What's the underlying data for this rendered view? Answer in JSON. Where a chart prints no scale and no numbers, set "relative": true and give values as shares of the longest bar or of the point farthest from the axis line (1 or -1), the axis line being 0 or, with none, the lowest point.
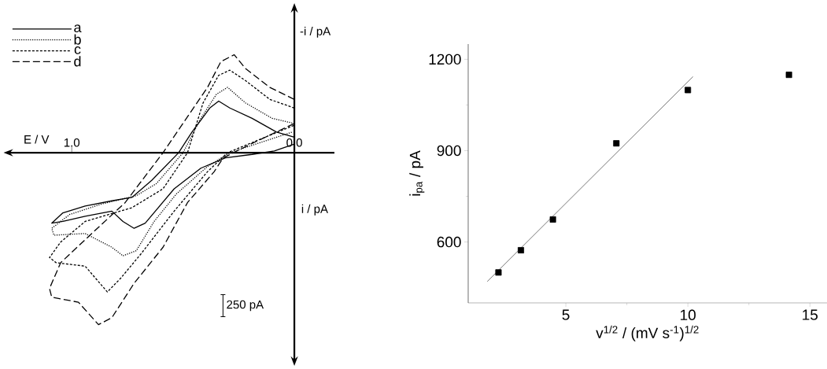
{
  "chart_data": [
    {
      "type": "line",
      "relative": true,
      "xlabel": "E / V",
      "ylabel": "-i / pA",
      "xlim": [
        1.28,
        -0.18
      ],
      "xticks": [
        {
          "value": 1.0,
          "label": "1.0"
        },
        {
          "value": 0.0,
          "label": "0.0"
        }
      ],
      "legend": "top left",
      "annotations": [
        "i / pA",
        "250 pA"
      ],
      "series": [
        {
          "name": "a",
          "color": "#000000",
          "line_style": "solid",
          "x": [
            0.0,
            0.08,
            0.19,
            0.29,
            0.34,
            0.38,
            0.46,
            0.52,
            0.64,
            0.73,
            0.82,
            0.94,
            1.04,
            1.09,
            1.04,
            0.94,
            0.82,
            0.77,
            0.72,
            0.67,
            0.54,
            0.42,
            0.31,
            0.19,
            0.09,
            0.0
          ],
          "values": [
            0.09,
            0.12,
            0.2,
            0.26,
            0.3,
            0.26,
            0.12,
            0.0,
            -0.16,
            -0.26,
            -0.28,
            -0.31,
            -0.35,
            -0.41,
            -0.4,
            -0.37,
            -0.34,
            -0.4,
            -0.44,
            -0.41,
            -0.21,
            -0.09,
            -0.03,
            -0.01,
            0.01,
            0.05
          ]
        },
        {
          "name": "b",
          "color": "#000000",
          "line_style": "dotted",
          "x": [
            0.0,
            0.1,
            0.22,
            0.3,
            0.35,
            0.42,
            0.5,
            0.62,
            0.71,
            0.87,
            1.01,
            1.09,
            1.08,
            0.94,
            0.82,
            0.77,
            0.71,
            0.63,
            0.53,
            0.39,
            0.29,
            0.15,
            0.01
          ],
          "values": [
            0.17,
            0.2,
            0.29,
            0.38,
            0.34,
            0.2,
            0.0,
            -0.18,
            -0.25,
            -0.3,
            -0.36,
            -0.44,
            -0.48,
            -0.47,
            -0.55,
            -0.6,
            -0.57,
            -0.4,
            -0.24,
            -0.08,
            0.0,
            0.06,
            0.12
          ]
        },
        {
          "name": "c",
          "color": "#000000",
          "line_style": "dashed",
          "x": [
            0.0,
            0.11,
            0.22,
            0.29,
            0.34,
            0.41,
            0.48,
            0.59,
            0.73,
            0.94,
            1.05,
            1.1,
            1.07,
            0.94,
            0.84,
            0.78,
            0.69,
            0.54,
            0.39,
            0.3,
            0.15,
            0.0
          ],
          "values": [
            0.26,
            0.31,
            0.42,
            0.48,
            0.45,
            0.29,
            0.0,
            -0.21,
            -0.32,
            -0.4,
            -0.52,
            -0.61,
            -0.64,
            -0.66,
            -0.81,
            -0.73,
            -0.59,
            -0.34,
            -0.11,
            0.0,
            0.08,
            0.16
          ]
        },
        {
          "name": "d",
          "color": "#000000",
          "line_style": "dashed",
          "x": [
            0.0,
            0.11,
            0.22,
            0.27,
            0.33,
            0.39,
            0.59,
            0.76,
            0.91,
            1.05,
            1.1,
            1.09,
            0.97,
            0.88,
            0.82,
            0.72,
            0.59,
            0.48,
            0.36,
            0.32,
            0.18,
            0.0
          ],
          "values": [
            0.31,
            0.38,
            0.49,
            0.57,
            0.53,
            0.38,
            0.0,
            -0.29,
            -0.47,
            -0.64,
            -0.79,
            -0.84,
            -0.87,
            -1.0,
            -0.96,
            -0.76,
            -0.55,
            -0.29,
            -0.11,
            -0.03,
            0.06,
            0.17
          ]
        }
      ]
    },
    {
      "type": "scatter",
      "xlabel": "v$^{1/2}$ / (mV s$^{-1}$)$^{1/2}$",
      "ylabel": "i$_{pa}$ / pA",
      "xlim": [
        1,
        15.7
      ],
      "ylim": [
        400,
        1250
      ],
      "xticks": [
        5,
        10,
        15
      ],
      "yticks": [
        600,
        900,
        1200
      ],
      "series": [
        {
          "color": "#000000",
          "marker": "square",
          "x": [
            2.24,
            3.16,
            4.47,
            7.07,
            10,
            14.14
          ],
          "values": [
            500,
            573,
            674,
            924,
            1099,
            1149
          ]
        },
        {
          "type": "line",
          "marker": "none",
          "color": "#555555",
          "x": [
            1.78,
            10.21
          ],
          "values": [
            470,
            1143
          ]
        }
      ]
    }
  ]
}
